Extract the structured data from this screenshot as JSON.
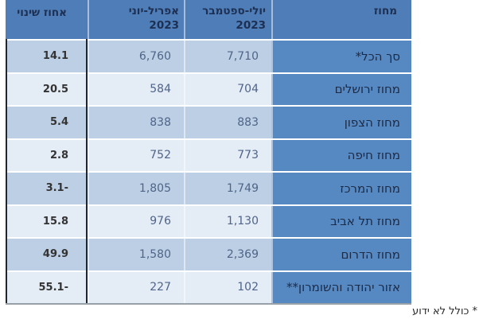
{
  "table": {
    "header": {
      "district": "מחוז",
      "jul_sep_line1": "יולי-ספטמבר",
      "jul_sep_line2": "2023",
      "apr_jun_line1": "אפריל-יוני",
      "apr_jun_line2": "2023",
      "pct": "אחוז שינוי"
    },
    "rows": [
      {
        "district": "סך הכל*",
        "jul_sep": "7,710",
        "apr_jun": "6,760",
        "pct": "14.1"
      },
      {
        "district": "מחוז ירושלים",
        "jul_sep": "704",
        "apr_jun": "584",
        "pct": "20.5"
      },
      {
        "district": "מחוז הצפון",
        "jul_sep": "883",
        "apr_jun": "838",
        "pct": "5.4"
      },
      {
        "district": "מחוז חיפה",
        "jul_sep": "773",
        "apr_jun": "752",
        "pct": "2.8"
      },
      {
        "district": "מחוז המרכז",
        "jul_sep": "1,749",
        "apr_jun": "1,805",
        "pct": "3.1-"
      },
      {
        "district": "מחוז תל אביב",
        "jul_sep": "1,130",
        "apr_jun": "976",
        "pct": "15.8"
      },
      {
        "district": "מחוז הדרום",
        "jul_sep": "2,369",
        "apr_jun": "1,580",
        "pct": "49.9"
      },
      {
        "district": "אזור יהודה והשומרון**",
        "jul_sep": "102",
        "apr_jun": "227",
        "pct": "55.1-"
      }
    ]
  },
  "footnote": "* כולל לא ידוע",
  "colors": {
    "header_bg": "#4e7db7",
    "label_column_bg": "#5688c2",
    "band_row_bg": "#bdcfe4",
    "pale_row_bg": "#e4ecf6",
    "header_text": "#1d2f52",
    "label_text": "#1b2b47",
    "count_text": "#4f6488",
    "percent_text": "#333333",
    "dark_border": "#1e2633"
  }
}
